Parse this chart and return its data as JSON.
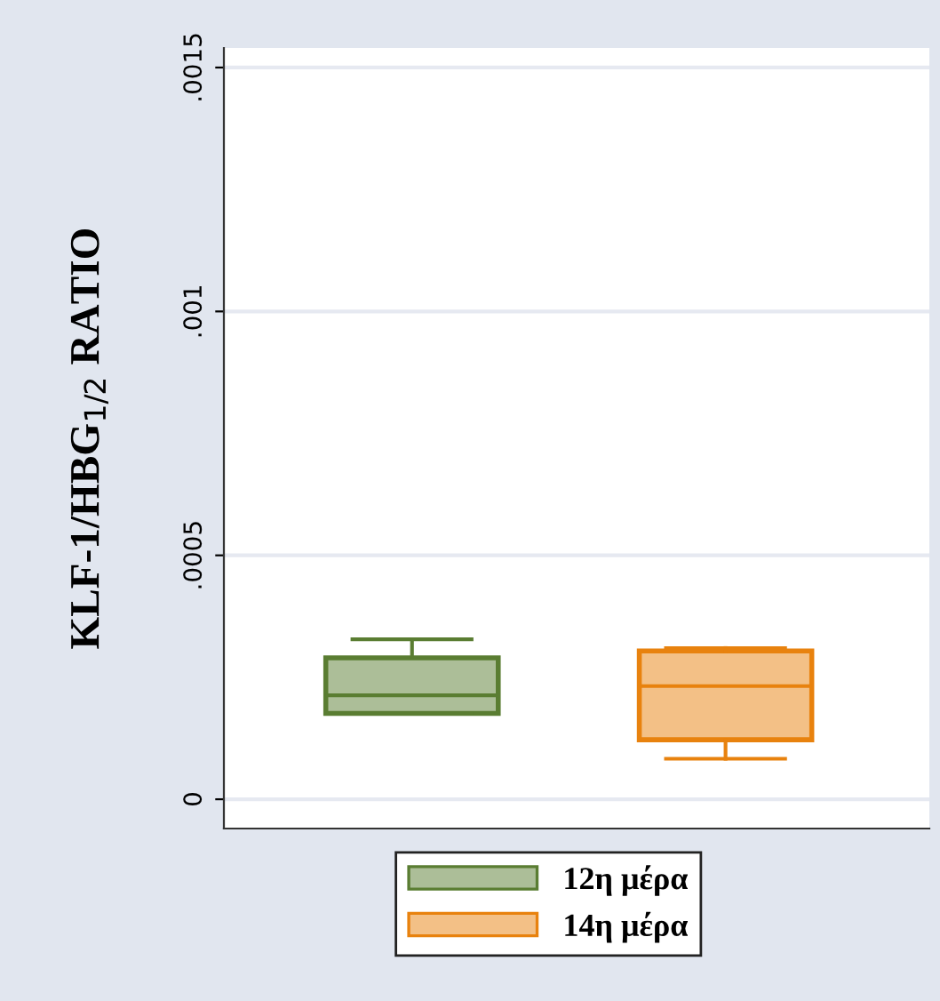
{
  "chart_data": {
    "type": "box",
    "ylabel": "KLF-1/HBG$_{1/2}$ RATIO",
    "categories": [
      null
    ],
    "series": [
      {
        "name": "12η μέρα",
        "color": "#5a7d32",
        "boxes": [
          {
            "low": 0.000176,
            "q1": 0.000176,
            "median": 0.000213,
            "q3": 0.00029,
            "high": 0.000328
          }
        ]
      },
      {
        "name": "14η μέρα",
        "color": "#e8820e",
        "boxes": [
          {
            "low": 8.3e-05,
            "q1": 0.000122,
            "median": 0.000232,
            "q3": 0.000304,
            "high": 0.00031
          }
        ]
      }
    ],
    "ylim": [
      -6e-05,
      0.00154
    ],
    "yticks": [
      {
        "value": 0,
        "label": "0"
      },
      {
        "value": 0.0005,
        "label": ".0005"
      },
      {
        "value": 0.001,
        "label": ".001"
      },
      {
        "value": 0.0015,
        "label": ".0015"
      }
    ],
    "grid": "y",
    "legend": "bottom",
    "tick_labels": "y"
  }
}
